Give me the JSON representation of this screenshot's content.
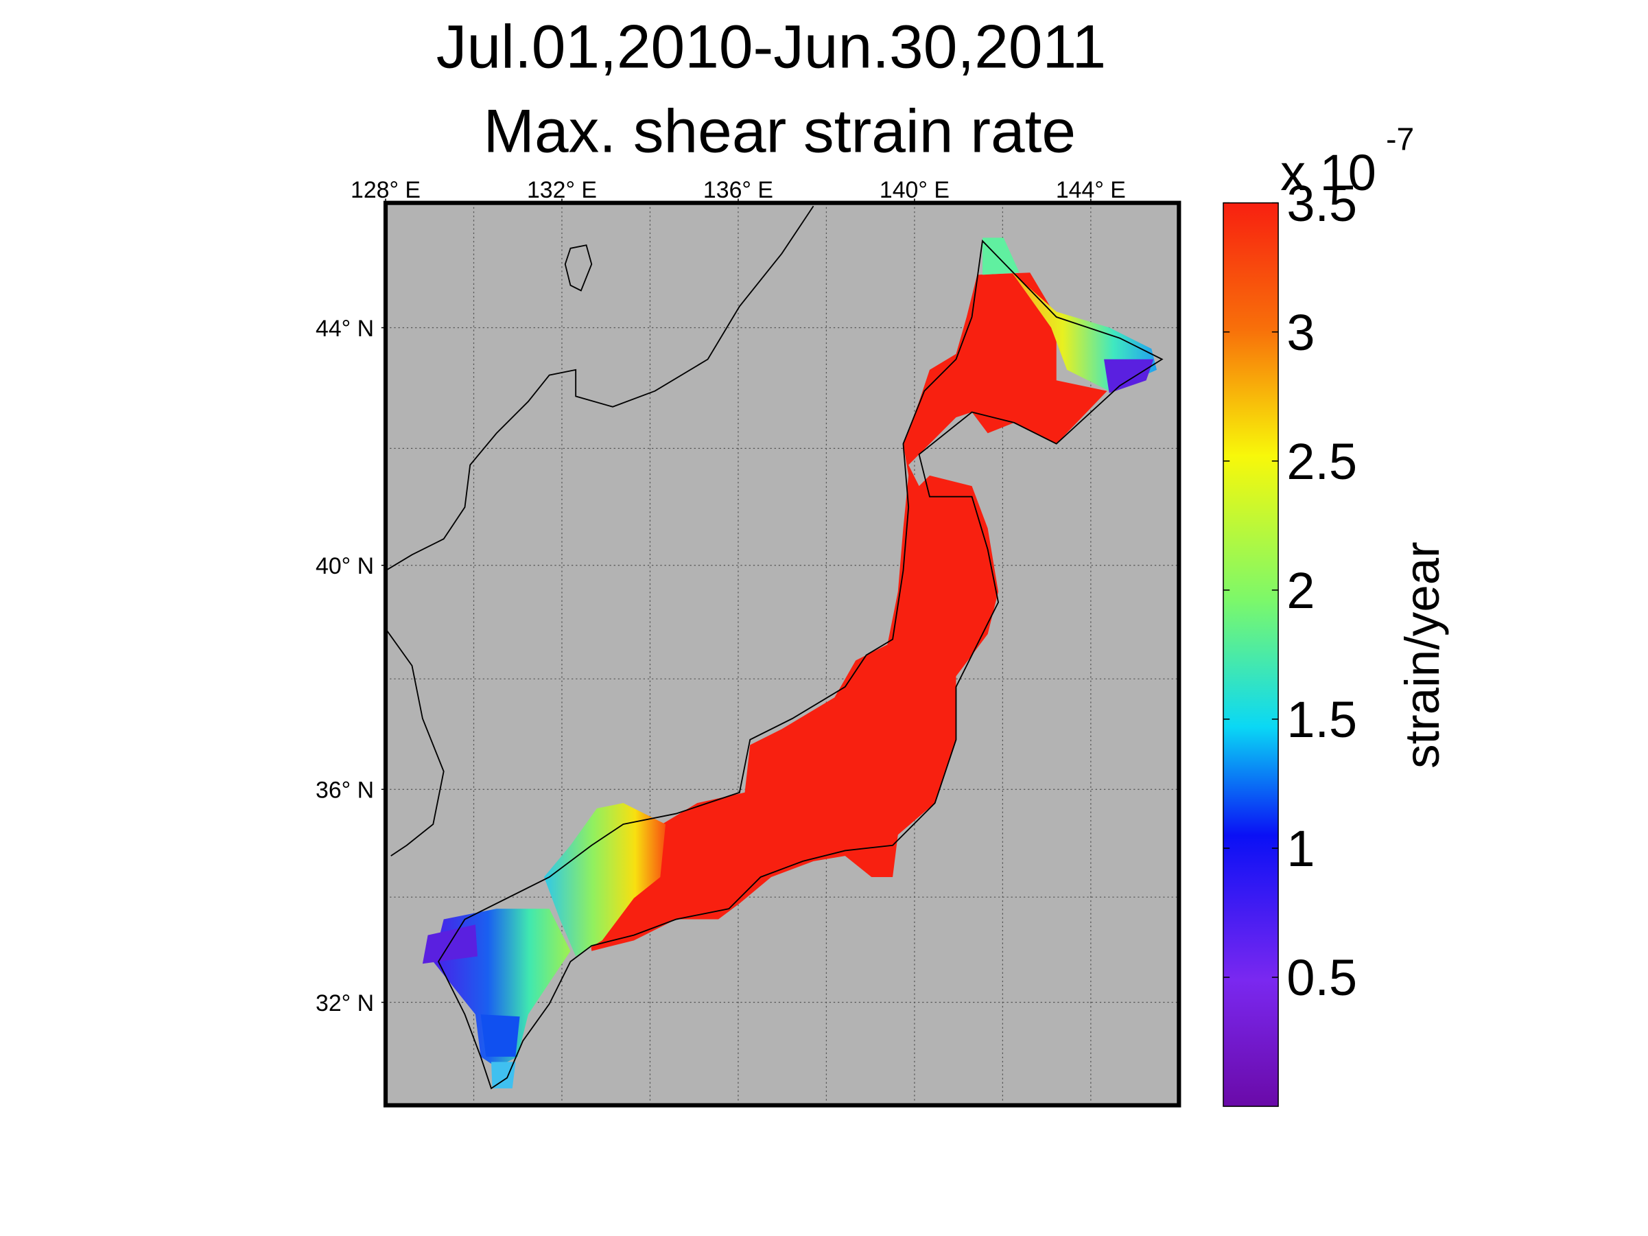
{
  "chart_data": {
    "type": "map",
    "title": "Jul.01,2010-Jun.30,2011",
    "subtitle": "Max. shear strain rate",
    "projection": "mercator",
    "xlim": [
      128,
      146
    ],
    "ylim": [
      30,
      46
    ],
    "xticks": [
      {
        "value": 128,
        "label": "128° E"
      },
      {
        "value": 132,
        "label": "132° E"
      },
      {
        "value": 136,
        "label": "136° E"
      },
      {
        "value": 140,
        "label": "140° E"
      },
      {
        "value": 144,
        "label": "144° E"
      }
    ],
    "yticks": [
      {
        "value": 32,
        "label": "32° N"
      },
      {
        "value": 36,
        "label": "36° N"
      },
      {
        "value": 40,
        "label": "40° N"
      },
      {
        "value": 44,
        "label": "44° N"
      }
    ],
    "xgrid": [
      130,
      132,
      134,
      136,
      138,
      140,
      142,
      144
    ],
    "ygrid": [
      32,
      34,
      36,
      38,
      40,
      42,
      44
    ],
    "grid": true,
    "background": "#b3b3b3",
    "colorbar": {
      "label": "strain/year",
      "multiplier": "x 10",
      "exponent": "-7",
      "clim": [
        0,
        3.5
      ],
      "ticks": [
        0.5,
        1,
        1.5,
        2,
        2.5,
        3,
        3.5
      ],
      "colormap": "jet"
    }
  }
}
